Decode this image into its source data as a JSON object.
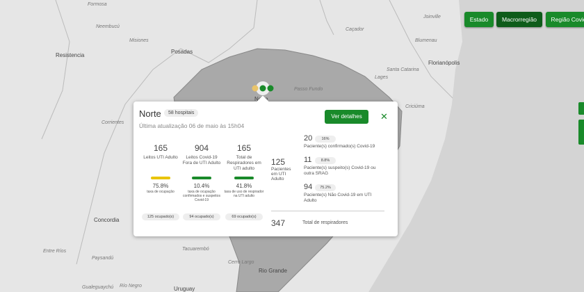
{
  "map": {
    "labels": [
      "Formosa",
      "Neembucú",
      "Misiones",
      "Posadas",
      "Resistencia",
      "Corrientes",
      "Concordia",
      "Entre Ríos",
      "Paysandú",
      "Tacuarembó",
      "Uruguay",
      "Gualeguaychú",
      "Río Negro",
      "Cerro Largo",
      "Joinville",
      "Blumenau",
      "Caçador",
      "Florianópolis",
      "Santa Catarina",
      "Lages",
      "Passo Fundo",
      "Criciúma",
      "Rio Grande",
      "Norte"
    ]
  },
  "toolbar": {
    "buttons": [
      "Estado",
      "Macrorregião",
      "Região Covid"
    ]
  },
  "popup": {
    "title": "Norte",
    "badge": "58 hospitais",
    "updated": "Última atualização 06 de maio às 15h04",
    "button": "Ver detalhes",
    "close": "✕",
    "columns": [
      {
        "value": "165",
        "label": "Leitos UTI Adulto",
        "rate": "75.8%",
        "rate_label": "taxa de ocupação",
        "occupied": "125 ocupado(s)"
      },
      {
        "value": "904",
        "label": "Leitos Covid-19 Fora de UTI Adulto",
        "rate": "10.4%",
        "rate_label": "taxa de ocupação confirmados e suspeitos Covid-19",
        "occupied": "94 ocupado(s)"
      },
      {
        "value": "165",
        "label": "Total de Respiradores em UTI adulto",
        "rate": "41.8%",
        "rate_label": "taxa de uso de respirador na UTI adulto",
        "occupied": "69 ocupado(s)"
      }
    ],
    "patients": {
      "value": "125",
      "label": "Pacientes em UTI Adulto"
    },
    "breakdown": [
      {
        "value": "20",
        "pct": "16%",
        "label": "Paciente(s) confirmado(s) Covid-19"
      },
      {
        "value": "11",
        "pct": "8.8%",
        "label": "Paciente(s) suspeito(s) Covid-19 ou outra SRAG"
      },
      {
        "value": "94",
        "pct": "75.2%",
        "label": "Paciente(s) Não Covid-19 em UTI Adulto"
      }
    ],
    "respirators": {
      "value": "347",
      "label": "Total de respiradores"
    }
  }
}
